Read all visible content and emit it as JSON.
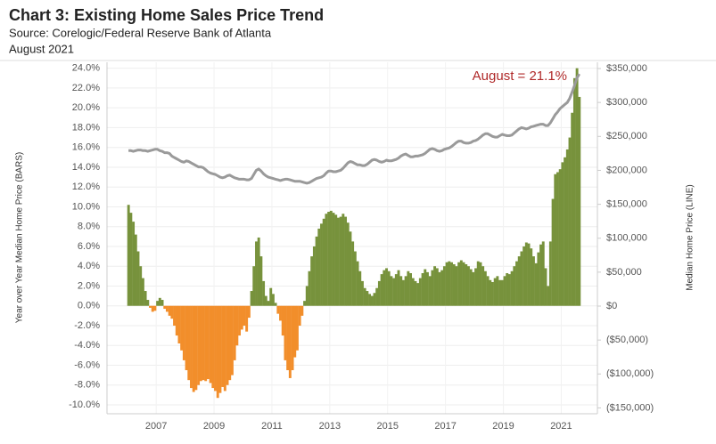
{
  "chart_data": {
    "type": "bar",
    "title": "Chart 3: Existing Home Sales Price Trend",
    "subtitle": "Source: Corelogic/Federal Reserve Bank of Atlanta",
    "date": "August 2021",
    "ylabel": "Year over Year Median Home Price (BARS)",
    "y2label": "Median Home Price (LINE)",
    "annotation": "August = 21.1%",
    "annotation_color": "#b02a2a",
    "grid": true,
    "xlim": [
      2005.3,
      2022.25
    ],
    "xticks": [
      2007,
      2009,
      2011,
      2013,
      2015,
      2017,
      2019,
      2021
    ],
    "ylim": [
      -10.9,
      24.6
    ],
    "yticks": [
      {
        "value": 24,
        "label": "24.0%"
      },
      {
        "value": 22,
        "label": "22.0%"
      },
      {
        "value": 20,
        "label": "20.0%"
      },
      {
        "value": 18,
        "label": "18.0%"
      },
      {
        "value": 16,
        "label": "16.0%"
      },
      {
        "value": 14,
        "label": "14.0%"
      },
      {
        "value": 12,
        "label": "12.0%"
      },
      {
        "value": 10,
        "label": "10.0%"
      },
      {
        "value": 8,
        "label": "8.0%"
      },
      {
        "value": 6,
        "label": "6.0%"
      },
      {
        "value": 4,
        "label": "4.0%"
      },
      {
        "value": 2,
        "label": "2.0%"
      },
      {
        "value": 0,
        "label": "0.0%"
      },
      {
        "value": -2,
        "label": "-2.0%"
      },
      {
        "value": -4,
        "label": "-4.0%"
      },
      {
        "value": -6,
        "label": "-6.0%"
      },
      {
        "value": -8,
        "label": "-8.0%"
      },
      {
        "value": -10,
        "label": "-10.0%"
      }
    ],
    "y2lim": [
      -158600,
      359200
    ],
    "y2ticks": [
      {
        "value": 350000,
        "label": "$350,000"
      },
      {
        "value": 300000,
        "label": "$300,000"
      },
      {
        "value": 250000,
        "label": "$250,000"
      },
      {
        "value": 200000,
        "label": "$200,000"
      },
      {
        "value": 150000,
        "label": "$150,000"
      },
      {
        "value": 100000,
        "label": "$100,000"
      },
      {
        "value": 50000,
        "label": "$50,000"
      },
      {
        "value": 0,
        "label": "$0"
      },
      {
        "value": -50000,
        "label": "($50,000)"
      },
      {
        "value": -100000,
        "label": "($100,000)"
      },
      {
        "value": -150000,
        "label": "($150,000)"
      }
    ],
    "x": [
      2006.0,
      2006.083,
      2006.167,
      2006.25,
      2006.333,
      2006.417,
      2006.5,
      2006.583,
      2006.667,
      2006.75,
      2006.833,
      2006.917,
      2007.0,
      2007.083,
      2007.167,
      2007.25,
      2007.333,
      2007.417,
      2007.5,
      2007.583,
      2007.667,
      2007.75,
      2007.833,
      2007.917,
      2008.0,
      2008.083,
      2008.167,
      2008.25,
      2008.333,
      2008.417,
      2008.5,
      2008.583,
      2008.667,
      2008.75,
      2008.833,
      2008.917,
      2009.0,
      2009.083,
      2009.167,
      2009.25,
      2009.333,
      2009.417,
      2009.5,
      2009.583,
      2009.667,
      2009.75,
      2009.833,
      2009.917,
      2010.0,
      2010.083,
      2010.167,
      2010.25,
      2010.333,
      2010.417,
      2010.5,
      2010.583,
      2010.667,
      2010.75,
      2010.833,
      2010.917,
      2011.0,
      2011.083,
      2011.167,
      2011.25,
      2011.333,
      2011.417,
      2011.5,
      2011.583,
      2011.667,
      2011.75,
      2011.833,
      2011.917,
      2012.0,
      2012.083,
      2012.167,
      2012.25,
      2012.333,
      2012.417,
      2012.5,
      2012.583,
      2012.667,
      2012.75,
      2012.833,
      2012.917,
      2013.0,
      2013.083,
      2013.167,
      2013.25,
      2013.333,
      2013.417,
      2013.5,
      2013.583,
      2013.667,
      2013.75,
      2013.833,
      2013.917,
      2014.0,
      2014.083,
      2014.167,
      2014.25,
      2014.333,
      2014.417,
      2014.5,
      2014.583,
      2014.667,
      2014.75,
      2014.833,
      2014.917,
      2015.0,
      2015.083,
      2015.167,
      2015.25,
      2015.333,
      2015.417,
      2015.5,
      2015.583,
      2015.667,
      2015.75,
      2015.833,
      2015.917,
      2016.0,
      2016.083,
      2016.167,
      2016.25,
      2016.333,
      2016.417,
      2016.5,
      2016.583,
      2016.667,
      2016.75,
      2016.833,
      2016.917,
      2017.0,
      2017.083,
      2017.167,
      2017.25,
      2017.333,
      2017.417,
      2017.5,
      2017.583,
      2017.667,
      2017.75,
      2017.833,
      2017.917,
      2018.0,
      2018.083,
      2018.167,
      2018.25,
      2018.333,
      2018.417,
      2018.5,
      2018.583,
      2018.667,
      2018.75,
      2018.833,
      2018.917,
      2019.0,
      2019.083,
      2019.167,
      2019.25,
      2019.333,
      2019.417,
      2019.5,
      2019.583,
      2019.667,
      2019.75,
      2019.833,
      2019.917,
      2020.0,
      2020.083,
      2020.167,
      2020.25,
      2020.333,
      2020.417,
      2020.5,
      2020.583,
      2020.667,
      2020.75,
      2020.833,
      2020.917,
      2021.0,
      2021.083,
      2021.167,
      2021.25,
      2021.333,
      2021.417,
      2021.5,
      2021.583
    ],
    "series": [
      {
        "color": "#77923c",
        "negative_color": "#f28e2b",
        "values": [
          10.2,
          9.4,
          8.5,
          7.2,
          5.5,
          4.0,
          2.8,
          1.5,
          0.6,
          -0.2,
          -0.6,
          -0.5,
          0.5,
          0.8,
          0.6,
          -0.3,
          -0.6,
          -1.0,
          -1.3,
          -2.0,
          -3.0,
          -3.8,
          -4.5,
          -5.5,
          -6.5,
          -7.5,
          -8.3,
          -8.7,
          -8.5,
          -8.0,
          -7.6,
          -7.5,
          -7.6,
          -7.4,
          -7.8,
          -8.3,
          -8.6,
          -9.3,
          -8.8,
          -8.2,
          -8.6,
          -8.0,
          -7.5,
          -7.0,
          -5.5,
          -4.0,
          -3.0,
          -2.4,
          -2.0,
          -2.6,
          -1.2,
          1.5,
          4.0,
          6.5,
          6.9,
          5.0,
          2.5,
          1.0,
          0.5,
          1.8,
          1.2,
          0.3,
          -0.8,
          -1.5,
          -3.0,
          -5.5,
          -6.5,
          -7.3,
          -6.5,
          -5.2,
          -4.5,
          -2.0,
          -1.0,
          0.5,
          2.0,
          3.5,
          5.0,
          6.0,
          7.0,
          7.8,
          8.3,
          8.8,
          9.3,
          9.5,
          9.6,
          9.4,
          9.2,
          8.9,
          9.0,
          9.3,
          9.0,
          8.4,
          7.5,
          6.5,
          5.5,
          4.5,
          3.5,
          2.5,
          1.8,
          1.5,
          1.2,
          1.0,
          1.3,
          1.8,
          2.5,
          3.2,
          3.6,
          3.8,
          3.5,
          3.0,
          2.8,
          3.2,
          3.6,
          3.0,
          2.6,
          3.0,
          3.5,
          3.3,
          2.8,
          2.5,
          2.3,
          2.8,
          3.3,
          3.7,
          3.4,
          3.0,
          3.6,
          4.0,
          3.8,
          3.4,
          3.6,
          4.0,
          4.4,
          4.5,
          4.4,
          4.2,
          4.0,
          4.4,
          4.6,
          4.4,
          4.2,
          4.0,
          3.7,
          3.4,
          3.8,
          4.5,
          4.4,
          4.0,
          3.5,
          3.0,
          2.6,
          2.4,
          2.8,
          3.0,
          2.6,
          2.6,
          3.0,
          3.3,
          3.2,
          3.5,
          4.0,
          4.5,
          5.0,
          5.5,
          6.0,
          6.4,
          6.3,
          5.8,
          5.0,
          4.3,
          5.4,
          6.2,
          6.5,
          3.8,
          2.0,
          6.5,
          10.8,
          13.3,
          13.5,
          13.8,
          14.5,
          15.0,
          15.8,
          17.0,
          19.5,
          23.0,
          24.0,
          21.1
        ]
      },
      {
        "type": "line",
        "axis": "y2",
        "color": "#9a9a9a",
        "values": [
          229000,
          229000,
          228000,
          229000,
          230000,
          230000,
          229000,
          229000,
          228000,
          229000,
          230000,
          231000,
          231000,
          229000,
          228000,
          226000,
          226000,
          225000,
          221000,
          219000,
          217000,
          215000,
          213000,
          212000,
          214000,
          213000,
          211000,
          209000,
          207000,
          205000,
          205000,
          204000,
          201000,
          198000,
          196000,
          195000,
          194000,
          192000,
          190000,
          189000,
          190000,
          192000,
          193000,
          191000,
          189000,
          188000,
          187000,
          187000,
          187000,
          186000,
          186000,
          188000,
          194000,
          200000,
          202000,
          199000,
          195000,
          192000,
          190000,
          189000,
          188000,
          187000,
          186000,
          185000,
          186000,
          187000,
          187000,
          186000,
          185000,
          184000,
          184000,
          184000,
          183000,
          182000,
          181000,
          182000,
          184000,
          186000,
          188000,
          189000,
          190000,
          192000,
          196000,
          199000,
          199000,
          198000,
          198000,
          199000,
          200000,
          203000,
          207000,
          211000,
          213000,
          212000,
          210000,
          208000,
          208000,
          207000,
          207000,
          209000,
          212000,
          215000,
          216000,
          215000,
          213000,
          212000,
          213000,
          215000,
          214000,
          214000,
          215000,
          216000,
          218000,
          221000,
          223000,
          224000,
          222000,
          220000,
          220000,
          221000,
          221000,
          222000,
          223000,
          225000,
          228000,
          231000,
          232000,
          231000,
          229000,
          228000,
          229000,
          231000,
          232000,
          233000,
          235000,
          238000,
          241000,
          243000,
          243000,
          241000,
          240000,
          240000,
          241000,
          243000,
          244000,
          246000,
          249000,
          252000,
          254000,
          254000,
          252000,
          250000,
          249000,
          249000,
          251000,
          253000,
          252000,
          251000,
          251000,
          252000,
          255000,
          258000,
          261000,
          263000,
          262000,
          261000,
          262000,
          264000,
          265000,
          266000,
          267000,
          268000,
          268000,
          266000,
          266000,
          270000,
          276000,
          282000,
          286000,
          291000,
          294000,
          297000,
          300000,
          306000,
          315000,
          325000,
          336000,
          342000
        ]
      }
    ]
  }
}
